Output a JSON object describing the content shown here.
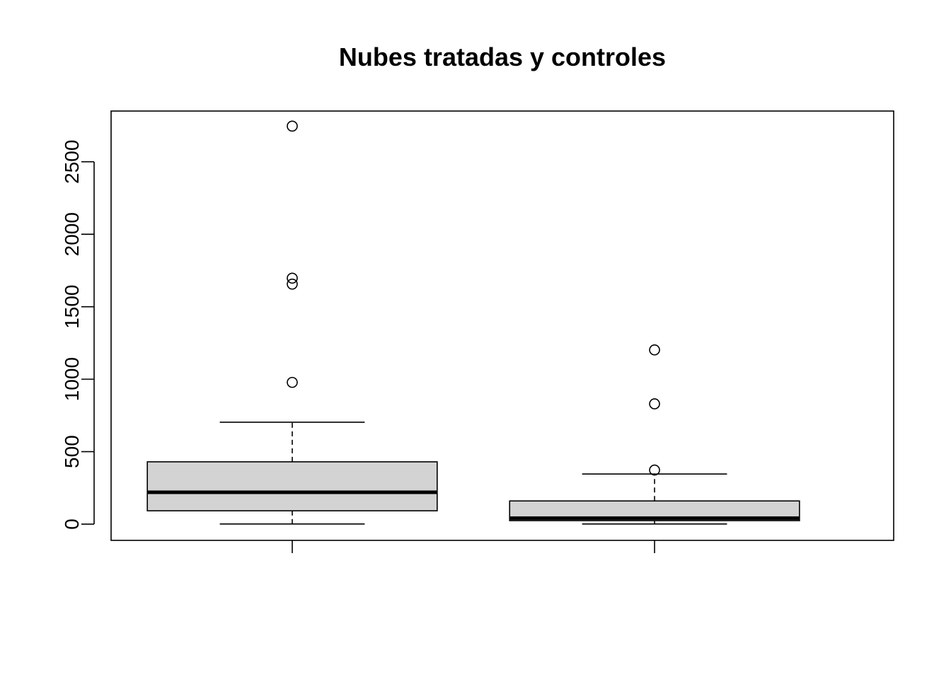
{
  "chart_data": {
    "type": "boxplot",
    "title": "Nubes tratadas y controles",
    "xlabel": "",
    "ylabel": "",
    "ylim": [
      -112,
      2850
    ],
    "y_ticks": [
      0,
      500,
      1000,
      1500,
      2000,
      2500
    ],
    "grid": false,
    "legend": "none",
    "box_fill_color": "#d3d3d3",
    "series": [
      {
        "category_position": 1,
        "whisker_low": 1,
        "q1": 92,
        "median": 220,
        "q3": 430,
        "whisker_high": 703,
        "outliers": [
          978,
          1656,
          1697,
          2746
        ]
      },
      {
        "category_position": 2,
        "whisker_low": 1,
        "q1": 24,
        "median": 41,
        "q3": 160,
        "whisker_high": 346,
        "outliers": [
          373,
          830,
          1202
        ]
      }
    ]
  }
}
